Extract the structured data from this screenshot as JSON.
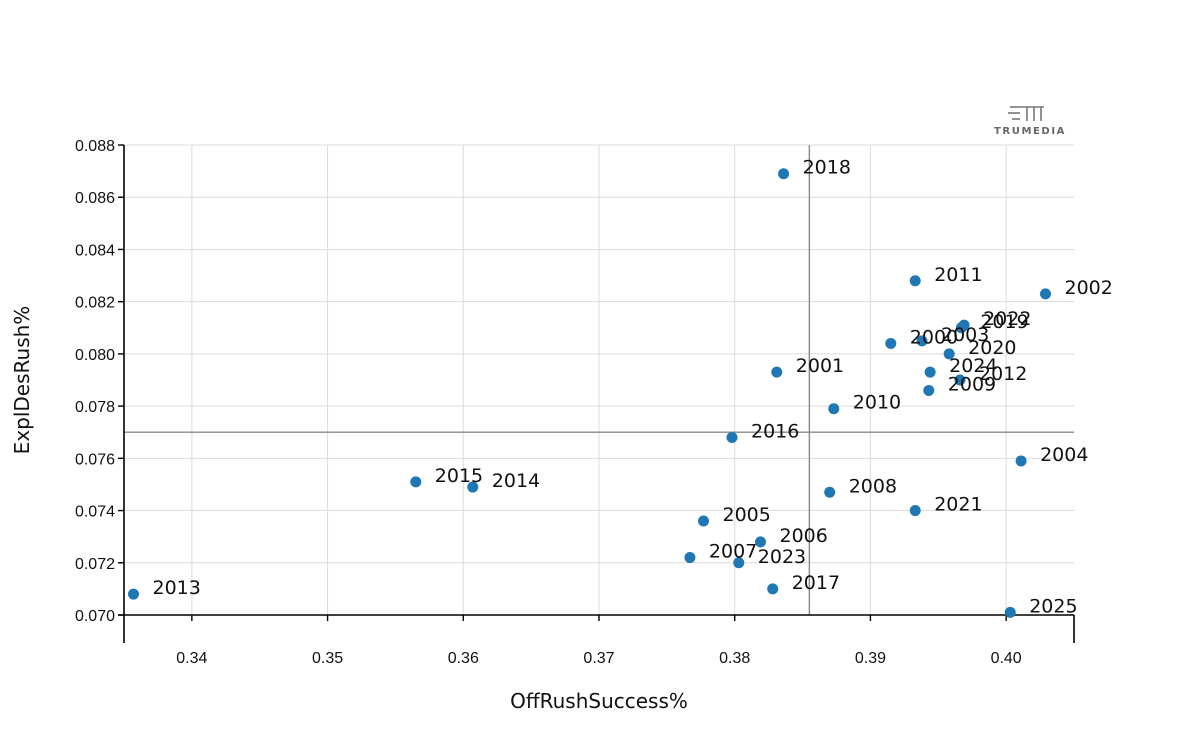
{
  "chart_data": {
    "type": "scatter",
    "xlabel": "OffRushSuccess%",
    "ylabel": "ExplDesRush%",
    "xlim": [
      0.335,
      0.405
    ],
    "ylim": [
      0.07,
      0.088
    ],
    "x_ticks": [
      0.34,
      0.35,
      0.36,
      0.37,
      0.38,
      0.39,
      0.4
    ],
    "x_tick_labels": [
      "0.34",
      "0.35",
      "0.36",
      "0.37",
      "0.38",
      "0.39",
      "0.40"
    ],
    "y_ticks": [
      0.07,
      0.072,
      0.074,
      0.076,
      0.078,
      0.08,
      0.082,
      0.084,
      0.086,
      0.088
    ],
    "y_tick_labels": [
      "0.070",
      "0.072",
      "0.074",
      "0.076",
      "0.078",
      "0.080",
      "0.082",
      "0.084",
      "0.086",
      "0.088"
    ],
    "grid": true,
    "reference_lines": {
      "x": 0.3855,
      "y": 0.077
    },
    "point_color": "#1f77b4",
    "points": [
      {
        "label": "2018",
        "x": 0.3836,
        "y": 0.0869
      },
      {
        "label": "2011",
        "x": 0.3933,
        "y": 0.0828
      },
      {
        "label": "2002",
        "x": 0.4029,
        "y": 0.0823
      },
      {
        "label": "2022",
        "x": 0.3969,
        "y": 0.0811
      },
      {
        "label": "2019",
        "x": 0.3967,
        "y": 0.081
      },
      {
        "label": "2000",
        "x": 0.3915,
        "y": 0.0804
      },
      {
        "label": "2003",
        "x": 0.3938,
        "y": 0.0805
      },
      {
        "label": "2020",
        "x": 0.3958,
        "y": 0.08
      },
      {
        "label": "2001",
        "x": 0.3831,
        "y": 0.0793
      },
      {
        "label": "2024",
        "x": 0.3944,
        "y": 0.0793
      },
      {
        "label": "2012",
        "x": 0.3966,
        "y": 0.079
      },
      {
        "label": "2009",
        "x": 0.3943,
        "y": 0.0786
      },
      {
        "label": "2010",
        "x": 0.3873,
        "y": 0.0779
      },
      {
        "label": "2016",
        "x": 0.3798,
        "y": 0.0768
      },
      {
        "label": "2004",
        "x": 0.4011,
        "y": 0.0759
      },
      {
        "label": "2015",
        "x": 0.3565,
        "y": 0.0751
      },
      {
        "label": "2014",
        "x": 0.3607,
        "y": 0.0749
      },
      {
        "label": "2008",
        "x": 0.387,
        "y": 0.0747
      },
      {
        "label": "2021",
        "x": 0.3933,
        "y": 0.074
      },
      {
        "label": "2005",
        "x": 0.3777,
        "y": 0.0736
      },
      {
        "label": "2006",
        "x": 0.3819,
        "y": 0.0728
      },
      {
        "label": "2007",
        "x": 0.3767,
        "y": 0.0722
      },
      {
        "label": "2023",
        "x": 0.3803,
        "y": 0.072
      },
      {
        "label": "2017",
        "x": 0.3828,
        "y": 0.071
      },
      {
        "label": "2013",
        "x": 0.3357,
        "y": 0.0708
      },
      {
        "label": "2025",
        "x": 0.4003,
        "y": 0.0701
      }
    ]
  },
  "logo": {
    "text": "TRUMEDIA"
  }
}
